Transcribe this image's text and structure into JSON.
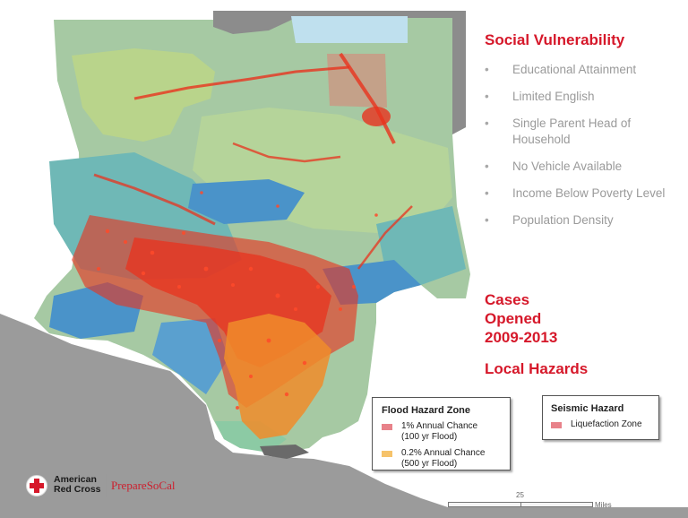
{
  "social_vulnerability": {
    "title": "Social Vulnerability",
    "bullets": [
      {
        "marker": "•",
        "text": "Educational Attainment"
      },
      {
        "marker": "•",
        "text": "Limited English"
      },
      {
        "marker": "•",
        "text": "Single Parent Head of Household"
      },
      {
        "marker": "•",
        "text": "No Vehicle Available"
      },
      {
        "marker": "•",
        "text": "Income Below Poverty Level"
      },
      {
        "marker": "•",
        "text": "Population Density"
      }
    ]
  },
  "cases_opened": {
    "title": "Cases Opened 2009-2013"
  },
  "local_hazards": {
    "title": "Local Hazards"
  },
  "flood_legend": {
    "title": "Flood Hazard Zone",
    "items": [
      {
        "label_line1": "1% Annual Chance",
        "label_line2": "(100 yr Flood)",
        "color": "#e8828a"
      },
      {
        "label_line1": "0.2% Annual Chance",
        "label_line2": "(500 yr Flood)",
        "color": "#f6c36b"
      }
    ]
  },
  "seismic_legend": {
    "title": "Seismic Hazard",
    "items": [
      {
        "label": "Liquefaction Zone",
        "color": "#e8828a"
      }
    ]
  },
  "logo": {
    "org_line1": "American",
    "org_line2": "Red Cross",
    "prepare": "Prepare",
    "socal": "SoCal",
    "cross_color": "#d6182a"
  },
  "scale": {
    "value": "25",
    "unit": "Miles"
  },
  "map_colors": {
    "ocean": "#9b9b9b",
    "mountains_green": "#b9d48b",
    "sage": "#a6c9a3",
    "teal": "#6fb8b6",
    "blue": "#4a93c9",
    "gray_region": "#8c8c8c",
    "cases_red": "#e8331e",
    "flood_orange": "#f08c2a"
  }
}
